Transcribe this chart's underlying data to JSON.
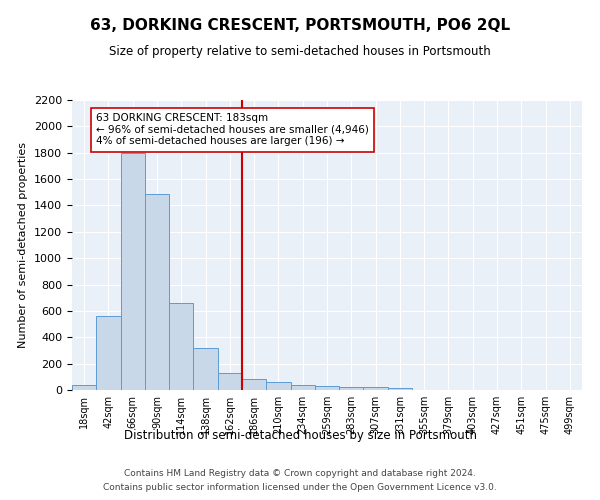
{
  "title": "63, DORKING CRESCENT, PORTSMOUTH, PO6 2QL",
  "subtitle": "Size of property relative to semi-detached houses in Portsmouth",
  "xlabel": "Distribution of semi-detached houses by size in Portsmouth",
  "ylabel": "Number of semi-detached properties",
  "bin_labels": [
    "18sqm",
    "42sqm",
    "66sqm",
    "90sqm",
    "114sqm",
    "138sqm",
    "162sqm",
    "186sqm",
    "210sqm",
    "234sqm",
    "259sqm",
    "283sqm",
    "307sqm",
    "331sqm",
    "355sqm",
    "379sqm",
    "403sqm",
    "427sqm",
    "451sqm",
    "475sqm",
    "499sqm"
  ],
  "bar_values": [
    40,
    560,
    1800,
    1490,
    660,
    320,
    130,
    80,
    60,
    40,
    30,
    25,
    20,
    15,
    0,
    0,
    0,
    0,
    0,
    0,
    0
  ],
  "bar_color": "#c8d8e8",
  "bar_edge_color": "#5b9bd5",
  "vline_x": 6.5,
  "vline_color": "#cc0000",
  "annotation_text": "63 DORKING CRESCENT: 183sqm\n← 96% of semi-detached houses are smaller (4,946)\n4% of semi-detached houses are larger (196) →",
  "annotation_box_color": "#ffffff",
  "annotation_box_edge": "#cc0000",
  "ylim": [
    0,
    2200
  ],
  "yticks": [
    0,
    200,
    400,
    600,
    800,
    1000,
    1200,
    1400,
    1600,
    1800,
    2000,
    2200
  ],
  "background_color": "#eaf0f8",
  "footer_line1": "Contains HM Land Registry data © Crown copyright and database right 2024.",
  "footer_line2": "Contains public sector information licensed under the Open Government Licence v3.0."
}
